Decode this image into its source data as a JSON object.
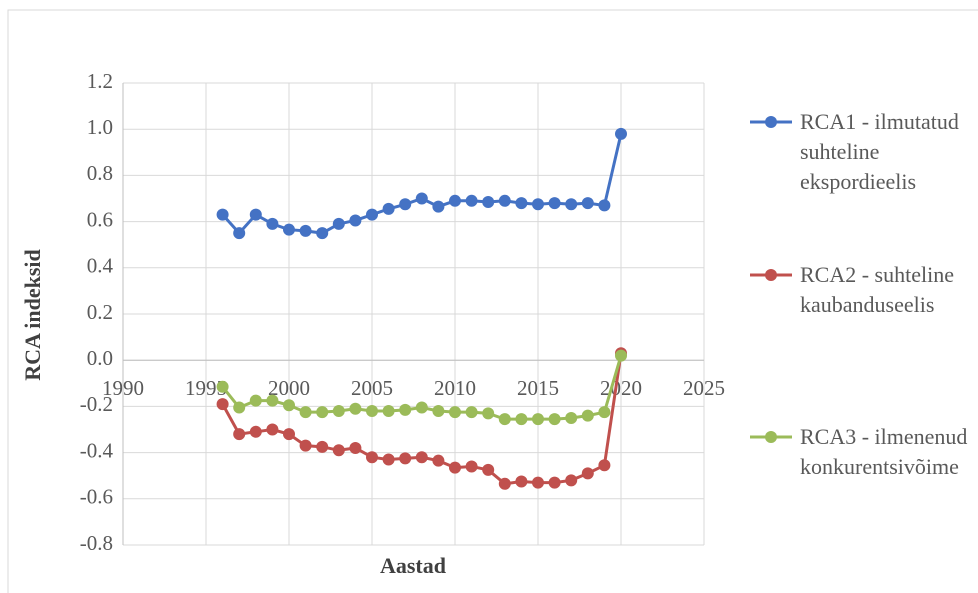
{
  "chart_data": {
    "type": "line",
    "x_label": "Aastad",
    "y_label": "RCA indeksid",
    "x": [
      1996,
      1997,
      1998,
      1999,
      2000,
      2001,
      2002,
      2003,
      2004,
      2005,
      2006,
      2007,
      2008,
      2009,
      2010,
      2011,
      2012,
      2013,
      2014,
      2015,
      2016,
      2017,
      2018,
      2019,
      2020
    ],
    "series": [
      {
        "name": "RCA1 - ilmutatud suhteline ekspordieelis",
        "color": "#4472c4",
        "values": [
          0.63,
          0.55,
          0.63,
          0.59,
          0.565,
          0.56,
          0.55,
          0.59,
          0.605,
          0.63,
          0.655,
          0.675,
          0.7,
          0.665,
          0.69,
          0.69,
          0.685,
          0.69,
          0.68,
          0.675,
          0.68,
          0.675,
          0.68,
          0.67,
          0.98
        ]
      },
      {
        "name": "RCA2 - suhteline kaubanduseelis",
        "color": "#c0504d",
        "values": [
          -0.19,
          -0.32,
          -0.31,
          -0.3,
          -0.32,
          -0.37,
          -0.375,
          -0.39,
          -0.38,
          -0.42,
          -0.43,
          -0.425,
          -0.42,
          -0.435,
          -0.465,
          -0.46,
          -0.475,
          -0.535,
          -0.525,
          -0.53,
          -0.53,
          -0.52,
          -0.49,
          -0.455,
          0.03
        ]
      },
      {
        "name": "RCA3 - ilmenenud konkurentsivõime",
        "color": "#9bbb59",
        "values": [
          -0.115,
          -0.205,
          -0.175,
          -0.175,
          -0.195,
          -0.225,
          -0.225,
          -0.22,
          -0.21,
          -0.22,
          -0.22,
          -0.215,
          -0.205,
          -0.22,
          -0.225,
          -0.225,
          -0.23,
          -0.255,
          -0.255,
          -0.255,
          -0.255,
          -0.25,
          -0.24,
          -0.225,
          0.02
        ]
      }
    ],
    "xlim": [
      1990,
      2025
    ],
    "xticks": [
      1990,
      1995,
      2000,
      2005,
      2010,
      2015,
      2020,
      2025
    ],
    "ylim": [
      -0.8,
      1.2
    ],
    "yticks": [
      -0.8,
      -0.6,
      -0.4,
      -0.2,
      {
        "value": 0,
        "label": "0.0"
      },
      0.2,
      0.4,
      0.6,
      0.8,
      {
        "value": 1,
        "label": "1.0"
      },
      1.2
    ],
    "grid": true,
    "legend": "right"
  }
}
